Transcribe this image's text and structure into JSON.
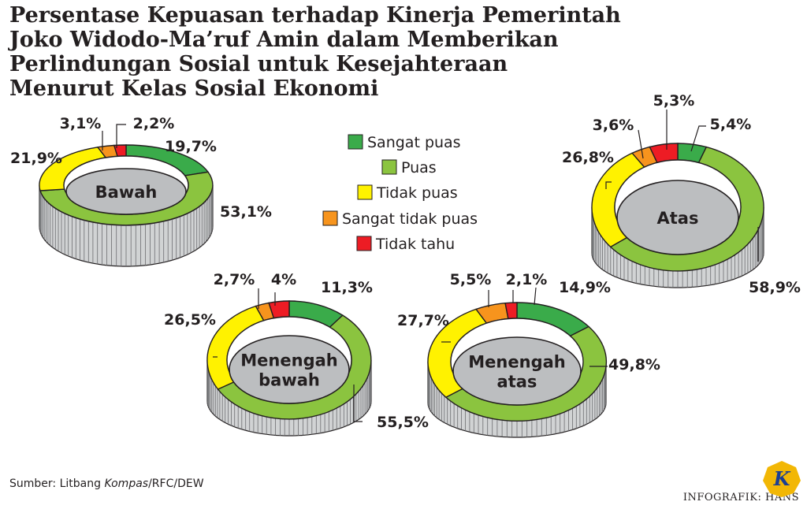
{
  "title_lines": [
    "Persentase Kepuasan terhadap Kinerja Pemerintah",
    "Joko Widodo-Ma’ruf Amin dalam Memberikan",
    "Perlindungan Sosial untuk Kesejahteraan",
    "Menurut Kelas Sosial Ekonomi"
  ],
  "colors": {
    "Sangat puas": "#3aab4a",
    "Puas": "#8bc43f",
    "Tidak puas": "#fff200",
    "Sangat tidak puas": "#f7941d",
    "Tidak tahu": "#ed1c24",
    "center": "#bcbec0",
    "side": "#d1d3d4"
  },
  "chart_data": {
    "type": "pie",
    "categories": [
      "Sangat puas",
      "Puas",
      "Tidak puas",
      "Sangat tidak puas",
      "Tidak tahu"
    ],
    "charts": [
      {
        "label_lines": [
          "Bawah"
        ],
        "values": [
          19.7,
          53.1,
          21.9,
          3.1,
          2.2
        ],
        "value_labels": [
          "19,7%",
          "53,1%",
          "21,9%",
          "3,1%",
          "2,2%"
        ]
      },
      {
        "label_lines": [
          "Atas"
        ],
        "values": [
          5.4,
          58.9,
          26.8,
          3.6,
          5.3
        ],
        "value_labels": [
          "5,4%",
          "58,9%",
          "26,8%",
          "3,6%",
          "5,3%"
        ]
      },
      {
        "label_lines": [
          "Menengah",
          "bawah"
        ],
        "values": [
          11.3,
          55.5,
          26.5,
          2.7,
          4
        ],
        "value_labels": [
          "11,3%",
          "55,5%",
          "26,5%",
          "2,7%",
          "4%"
        ]
      },
      {
        "label_lines": [
          "Menengah",
          "atas"
        ],
        "values": [
          14.9,
          49.8,
          27.7,
          5.5,
          2.1
        ],
        "value_labels": [
          "14,9%",
          "49,8%",
          "27,7%",
          "5,5%",
          "2,1%"
        ]
      }
    ]
  },
  "source": {
    "prefix": "Sumber: Litbang ",
    "italic": "Kompas",
    "suffix": "/RFC/DEW"
  },
  "credit": "INFOGRAFIK: HANS",
  "logo_letter": "K"
}
